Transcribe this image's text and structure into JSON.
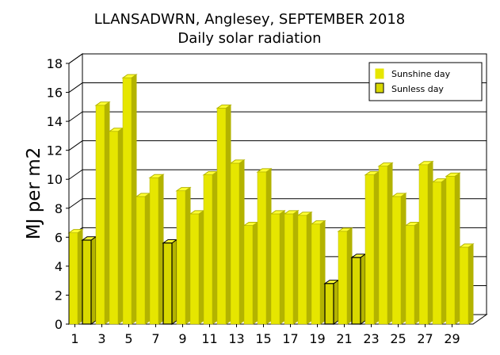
{
  "chart_data": {
    "type": "bar",
    "title": "LLANSADWRN, Anglesey, SEPTEMBER 2018",
    "subtitle": "Daily solar radiation",
    "ylabel": "MJ per m2",
    "ylim": [
      0,
      18
    ],
    "yticks": [
      "0",
      "2",
      "4",
      "6",
      "8",
      "10",
      "12",
      "14",
      "16",
      "18"
    ],
    "grid": true,
    "legend_position": "top-right",
    "categories": [
      "1",
      "2",
      "3",
      "4",
      "5",
      "6",
      "7",
      "8",
      "9",
      "10",
      "11",
      "12",
      "13",
      "14",
      "15",
      "16",
      "17",
      "18",
      "19",
      "20",
      "21",
      "22",
      "23",
      "24",
      "25",
      "26",
      "27",
      "28",
      "29",
      "30"
    ],
    "xtick_labels": [
      "1",
      "3",
      "5",
      "7",
      "9",
      "11",
      "13",
      "15",
      "17",
      "19",
      "21",
      "23",
      "25",
      "27",
      "29"
    ],
    "series": [
      {
        "name": "Sunshine day",
        "color": "#e6e600",
        "values": [
          6.3,
          0,
          15.1,
          13.3,
          17.0,
          8.8,
          10.1,
          0,
          9.2,
          7.6,
          10.3,
          14.9,
          11.1,
          6.8,
          10.5,
          7.6,
          7.6,
          7.5,
          6.9,
          0,
          6.4,
          0,
          10.3,
          10.9,
          8.8,
          6.8,
          11.0,
          9.8,
          10.2,
          5.3
        ]
      },
      {
        "name": "Sunless day",
        "color": "#d9d900",
        "values": [
          0,
          5.8,
          0,
          0,
          0,
          0,
          0,
          5.6,
          0,
          0,
          0,
          0,
          0,
          0,
          0,
          0,
          0,
          0,
          0,
          2.8,
          0,
          4.6,
          0,
          0,
          0,
          0,
          0,
          0,
          0,
          0
        ]
      }
    ],
    "colors": {
      "sunshine_front": "#e6e600",
      "sunshine_side": "#b3b300",
      "sunshine_top": "#ffff33",
      "sunless_front": "#d9d900",
      "grid": "#000000"
    }
  }
}
